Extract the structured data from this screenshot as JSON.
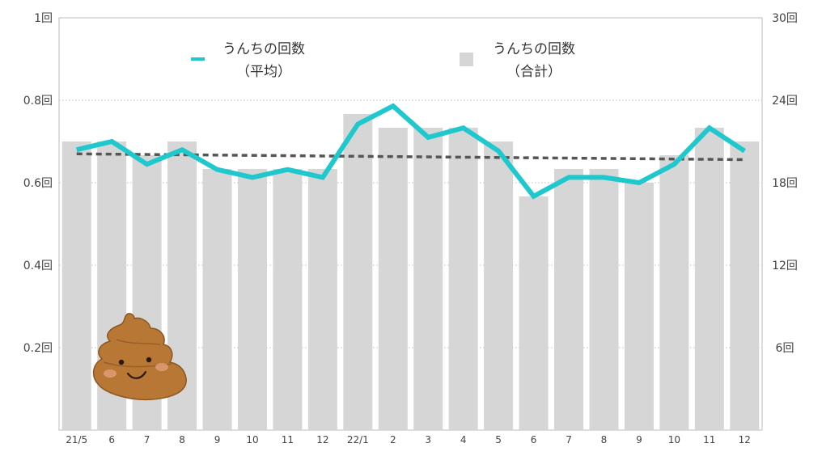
{
  "chart_data": {
    "type": "bar+line",
    "categories": [
      "21/5",
      "6",
      "7",
      "8",
      "9",
      "10",
      "11",
      "12",
      "22/1",
      "2",
      "3",
      "4",
      "5",
      "6",
      "7",
      "8",
      "9",
      "10",
      "11",
      "12"
    ],
    "series": [
      {
        "name": "うんちの回数（合計）",
        "type": "bar",
        "axis": "right",
        "color": "#d6d6d6",
        "values": [
          21,
          21,
          20,
          21,
          19,
          19,
          19,
          19,
          23,
          22,
          22,
          22,
          21,
          17,
          19,
          19,
          18,
          20,
          22,
          21
        ]
      },
      {
        "name": "うんちの回数（平均）",
        "type": "line",
        "axis": "left",
        "color": "#1ec8cc",
        "values": [
          0.68,
          0.7,
          0.645,
          0.68,
          0.632,
          0.613,
          0.632,
          0.613,
          0.742,
          0.786,
          0.71,
          0.733,
          0.677,
          0.567,
          0.613,
          0.613,
          0.6,
          0.645,
          0.733,
          0.677
        ]
      },
      {
        "name": "trend",
        "type": "line",
        "style": "dashed",
        "axis": "left",
        "color": "#555555",
        "values_start_end": [
          0.67,
          0.656
        ]
      }
    ],
    "y_left": {
      "ticks": [
        "0.2回",
        "0.4回",
        "0.6回",
        "0.8回",
        "1回"
      ],
      "tick_values": [
        0.2,
        0.4,
        0.6,
        0.8,
        1.0
      ],
      "range": [
        0,
        1
      ]
    },
    "y_right": {
      "ticks": [
        "6回",
        "12回",
        "18回",
        "24回",
        "30回"
      ],
      "tick_values": [
        6,
        12,
        18,
        24,
        30
      ],
      "range": [
        0,
        30
      ]
    },
    "grid": "horizontal-dotted",
    "legend": [
      {
        "line1": "うんちの回数",
        "line2": "（平均）",
        "marker": "line",
        "color": "#1ec8cc"
      },
      {
        "line1": "うんちの回数",
        "line2": "（合計）",
        "marker": "square",
        "color": "#d6d6d6"
      }
    ],
    "legend_position": "top-center",
    "decoration": "poop-illustration"
  }
}
